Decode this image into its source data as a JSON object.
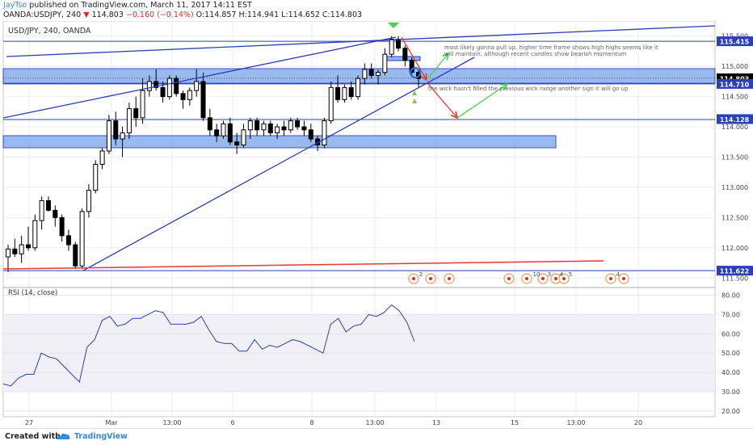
{
  "header": {
    "author": "JayTso",
    "published": "published on TradingView.com, March 11, 2017 14:11 EST",
    "symbol_line": "OANDA:USDJPY, 240",
    "last": "114.803",
    "change": "−0.160 (−0.14%)",
    "ohlc": "O:114.857 H:114.941 L:114.652 C:114.803"
  },
  "chart_label": "USD/JPY, 240, OANDA",
  "price_tags": [
    {
      "text": "115.415",
      "price": 115.415,
      "bg": "#2c3fb8"
    },
    {
      "text": "114.803",
      "price": 114.803,
      "bg": "#000000"
    },
    {
      "text": "114.710",
      "price": 114.71,
      "bg": "#2c3fb8"
    },
    {
      "text": "114.128",
      "price": 114.128,
      "bg": "#2c3fb8"
    },
    {
      "text": "111.622",
      "price": 111.622,
      "bg": "#2c3fb8"
    }
  ],
  "annotations": [
    "most likely gonna pull up, higher time frame shows high highs seems like it will maintain, although recent candles show bearish momentum",
    "the wick hasn't filled the previous wick range another sign it will go up"
  ],
  "event_labels": [
    "2",
    "10",
    "3",
    "4",
    "5",
    "4"
  ],
  "rsi_label": "RSI (14, close)",
  "footer": {
    "created": "Created with",
    "brand": "TradingView"
  },
  "colors": {
    "drawing": "#2c3fb8",
    "zone": "#8fb3ef",
    "support": "#e53935",
    "bear_arrow": "#e53935",
    "bull_arrow": "#43d343",
    "rsi": "#2c3fb8"
  },
  "chart_data": {
    "type": "candlestick",
    "title": "USD/JPY, 240, OANDA",
    "y_ticks": [
      111.5,
      112,
      112.5,
      113,
      113.5,
      114,
      114.5,
      115,
      115.5
    ],
    "y_range": [
      111.45,
      115.75
    ],
    "x_ticks": [
      "27",
      "Mar",
      "13:00",
      "6",
      "8",
      "13:00",
      "13",
      "15",
      "13:00",
      "20"
    ],
    "candles": [
      {
        "o": 111.85,
        "h": 112.05,
        "l": 111.6,
        "c": 111.98
      },
      {
        "o": 111.98,
        "h": 112.15,
        "l": 111.85,
        "c": 111.9
      },
      {
        "o": 111.9,
        "h": 112.2,
        "l": 111.75,
        "c": 112.05
      },
      {
        "o": 112.05,
        "h": 112.35,
        "l": 111.95,
        "c": 112.0
      },
      {
        "o": 112.0,
        "h": 112.55,
        "l": 111.95,
        "c": 112.45
      },
      {
        "o": 112.45,
        "h": 112.85,
        "l": 112.3,
        "c": 112.78
      },
      {
        "o": 112.78,
        "h": 112.85,
        "l": 112.6,
        "c": 112.62
      },
      {
        "o": 112.62,
        "h": 112.7,
        "l": 112.35,
        "c": 112.5
      },
      {
        "o": 112.5,
        "h": 112.55,
        "l": 112.1,
        "c": 112.2
      },
      {
        "o": 112.2,
        "h": 112.3,
        "l": 111.95,
        "c": 112.05
      },
      {
        "o": 112.05,
        "h": 112.1,
        "l": 111.65,
        "c": 111.7
      },
      {
        "o": 111.7,
        "h": 112.65,
        "l": 111.65,
        "c": 112.6
      },
      {
        "o": 112.6,
        "h": 113.05,
        "l": 112.5,
        "c": 112.95
      },
      {
        "o": 112.95,
        "h": 113.45,
        "l": 112.9,
        "c": 113.38
      },
      {
        "o": 113.38,
        "h": 113.65,
        "l": 113.3,
        "c": 113.6
      },
      {
        "o": 113.6,
        "h": 114.2,
        "l": 113.55,
        "c": 114.1
      },
      {
        "o": 114.1,
        "h": 114.25,
        "l": 113.7,
        "c": 113.8
      },
      {
        "o": 113.8,
        "h": 114.0,
        "l": 113.5,
        "c": 113.9
      },
      {
        "o": 113.9,
        "h": 114.4,
        "l": 113.8,
        "c": 114.3
      },
      {
        "o": 114.3,
        "h": 114.5,
        "l": 114.0,
        "c": 114.15
      },
      {
        "o": 114.15,
        "h": 114.8,
        "l": 114.05,
        "c": 114.6
      },
      {
        "o": 114.6,
        "h": 114.85,
        "l": 114.5,
        "c": 114.75
      },
      {
        "o": 114.75,
        "h": 114.95,
        "l": 114.6,
        "c": 114.65
      },
      {
        "o": 114.65,
        "h": 114.75,
        "l": 114.4,
        "c": 114.5
      },
      {
        "o": 114.5,
        "h": 114.85,
        "l": 114.45,
        "c": 114.8
      },
      {
        "o": 114.8,
        "h": 114.85,
        "l": 114.5,
        "c": 114.55
      },
      {
        "o": 114.55,
        "h": 114.6,
        "l": 114.3,
        "c": 114.45
      },
      {
        "o": 114.45,
        "h": 114.65,
        "l": 114.35,
        "c": 114.6
      },
      {
        "o": 114.6,
        "h": 114.95,
        "l": 114.5,
        "c": 114.75
      },
      {
        "o": 114.75,
        "h": 114.9,
        "l": 114.1,
        "c": 114.15
      },
      {
        "o": 114.15,
        "h": 114.3,
        "l": 113.85,
        "c": 113.95
      },
      {
        "o": 113.95,
        "h": 114.05,
        "l": 113.75,
        "c": 113.85
      },
      {
        "o": 113.85,
        "h": 114.1,
        "l": 113.8,
        "c": 114.05
      },
      {
        "o": 114.05,
        "h": 114.15,
        "l": 113.7,
        "c": 113.75
      },
      {
        "o": 113.75,
        "h": 113.9,
        "l": 113.55,
        "c": 113.7
      },
      {
        "o": 113.7,
        "h": 114.05,
        "l": 113.65,
        "c": 113.95
      },
      {
        "o": 113.95,
        "h": 114.15,
        "l": 113.8,
        "c": 114.1
      },
      {
        "o": 114.1,
        "h": 114.15,
        "l": 113.85,
        "c": 113.95
      },
      {
        "o": 113.95,
        "h": 114.1,
        "l": 113.85,
        "c": 114.05
      },
      {
        "o": 114.05,
        "h": 114.1,
        "l": 113.85,
        "c": 113.9
      },
      {
        "o": 113.9,
        "h": 114.05,
        "l": 113.8,
        "c": 114.0
      },
      {
        "o": 114.0,
        "h": 114.1,
        "l": 113.85,
        "c": 113.95
      },
      {
        "o": 113.95,
        "h": 114.15,
        "l": 113.9,
        "c": 114.1
      },
      {
        "o": 114.1,
        "h": 114.15,
        "l": 113.95,
        "c": 114.0
      },
      {
        "o": 114.0,
        "h": 114.1,
        "l": 113.85,
        "c": 113.95
      },
      {
        "o": 113.95,
        "h": 114.05,
        "l": 113.75,
        "c": 113.8
      },
      {
        "o": 113.8,
        "h": 113.85,
        "l": 113.6,
        "c": 113.7
      },
      {
        "o": 113.7,
        "h": 114.15,
        "l": 113.65,
        "c": 114.1
      },
      {
        "o": 114.1,
        "h": 114.75,
        "l": 114.05,
        "c": 114.65
      },
      {
        "o": 114.65,
        "h": 114.85,
        "l": 114.4,
        "c": 114.45
      },
      {
        "o": 114.45,
        "h": 114.7,
        "l": 114.4,
        "c": 114.65
      },
      {
        "o": 114.65,
        "h": 114.75,
        "l": 114.45,
        "c": 114.5
      },
      {
        "o": 114.5,
        "h": 114.85,
        "l": 114.45,
        "c": 114.8
      },
      {
        "o": 114.8,
        "h": 115.05,
        "l": 114.7,
        "c": 114.95
      },
      {
        "o": 114.95,
        "h": 115.05,
        "l": 114.8,
        "c": 114.85
      },
      {
        "o": 114.85,
        "h": 114.95,
        "l": 114.7,
        "c": 114.9
      },
      {
        "o": 114.9,
        "h": 115.3,
        "l": 114.85,
        "c": 115.2
      },
      {
        "o": 115.2,
        "h": 115.5,
        "l": 115.15,
        "c": 115.45
      },
      {
        "o": 115.45,
        "h": 115.5,
        "l": 115.25,
        "c": 115.3
      },
      {
        "o": 115.3,
        "h": 115.35,
        "l": 115.0,
        "c": 115.1
      },
      {
        "o": 115.1,
        "h": 115.15,
        "l": 114.85,
        "c": 114.9
      },
      {
        "o": 114.9,
        "h": 114.95,
        "l": 114.65,
        "c": 114.8
      }
    ],
    "rsi": {
      "name": "RSI (14, close)",
      "ticks": [
        20,
        30,
        40,
        50,
        60,
        70,
        80
      ],
      "range": [
        17,
        84
      ],
      "values": [
        34,
        33,
        37,
        39,
        39,
        50,
        48,
        47,
        43,
        39,
        35,
        53,
        57,
        67,
        69,
        64,
        65,
        68,
        68,
        70,
        72,
        71,
        65,
        65,
        65,
        66,
        69,
        62,
        56,
        55,
        55,
        51,
        51,
        57,
        52,
        54,
        53,
        55,
        57,
        56,
        54,
        52,
        50,
        65,
        68,
        61,
        64,
        65,
        70,
        69,
        71,
        75,
        72,
        66,
        56
      ]
    }
  }
}
